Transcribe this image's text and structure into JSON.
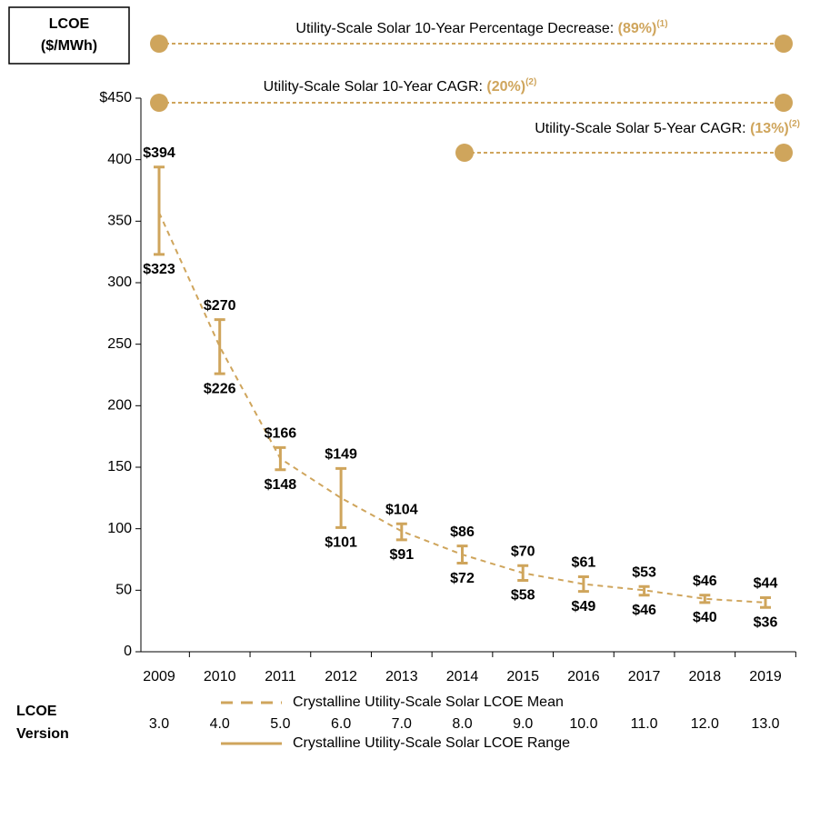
{
  "chart_data": {
    "type": "range",
    "y_label": [
      "LCOE",
      "($/MWh)"
    ],
    "categories": [
      "2009",
      "2010",
      "2011",
      "2012",
      "2013",
      "2014",
      "2015",
      "2016",
      "2017",
      "2018",
      "2019"
    ],
    "row_label": [
      "LCOE",
      "Version"
    ],
    "versions": [
      "3.0",
      "4.0",
      "5.0",
      "6.0",
      "7.0",
      "8.0",
      "9.0",
      "10.0",
      "11.0",
      "12.0",
      "13.0"
    ],
    "ylim": [
      0,
      450
    ],
    "yticks": [
      0,
      50,
      100,
      150,
      200,
      250,
      300,
      350,
      400,
      {
        "value": 450,
        "label": "$450"
      }
    ],
    "color": "#cfa55c",
    "series": [
      {
        "name": "Crystalline Utility-Scale Solar LCOE Mean",
        "style": "dashed",
        "values": [
          357,
          248,
          157,
          125,
          98,
          79,
          64,
          55,
          50,
          43,
          40
        ]
      },
      {
        "name": "Crystalline Utility-Scale Solar LCOE Range",
        "style": "range",
        "low": [
          323,
          226,
          148,
          101,
          91,
          72,
          58,
          49,
          46,
          40,
          36
        ],
        "high": [
          394,
          270,
          166,
          149,
          104,
          86,
          70,
          61,
          53,
          46,
          44
        ],
        "low_labels": [
          "$323",
          "$226",
          "$148",
          "$101",
          "$91",
          "$72",
          "$58",
          "$49",
          "$46",
          "$40",
          "$36"
        ],
        "high_labels": [
          "$394",
          "$270",
          "$166",
          "$149",
          "$104",
          "$86",
          "$70",
          "$61",
          "$53",
          "$46",
          "$44"
        ]
      }
    ],
    "annotations": [
      {
        "text": "Utility-Scale Solar 10-Year Percentage Decrease: ",
        "value": "(89%)",
        "note": "(1)"
      },
      {
        "text": "Utility-Scale Solar 10-Year CAGR: ",
        "value": "(20%)",
        "note": "(2)"
      },
      {
        "text": "Utility-Scale Solar 5-Year CAGR: ",
        "value": "(13%)",
        "note": "(2)"
      }
    ]
  }
}
